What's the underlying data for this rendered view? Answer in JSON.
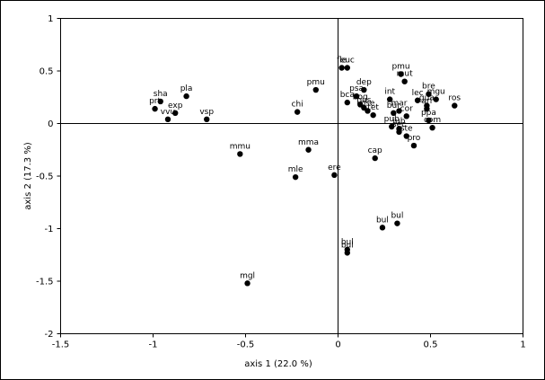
{
  "chart_data": {
    "type": "scatter",
    "title": "",
    "xlabel": "axis 1 (22.0 %)",
    "ylabel": "axis 2 (17.3 %)",
    "xlim": [
      -1.5,
      1
    ],
    "ylim": [
      -2,
      1
    ],
    "xticks": [
      -1.5,
      -1,
      -0.5,
      0,
      0.5,
      1
    ],
    "yticks": [
      -2,
      -1.5,
      -1,
      -0.5,
      0,
      0.5,
      1
    ],
    "xtick_labels": [
      "-1.5",
      "-1",
      "-0.5",
      "0",
      "0.5",
      "1"
    ],
    "ytick_labels": [
      "-2",
      "-1.5",
      "-1",
      "-0.5",
      "0",
      "0.5",
      "1"
    ],
    "grid": false,
    "zero_lines": true,
    "points": [
      {
        "label": "sha",
        "x": -0.96,
        "y": 0.21
      },
      {
        "label": "pla",
        "x": -0.82,
        "y": 0.26
      },
      {
        "label": "exp",
        "x": -0.88,
        "y": 0.1
      },
      {
        "label": "prt",
        "x": -0.99,
        "y": 0.14
      },
      {
        "label": "vvu",
        "x": -0.92,
        "y": 0.04
      },
      {
        "label": "vsp",
        "x": -0.71,
        "y": 0.04
      },
      {
        "label": "chi",
        "x": -0.22,
        "y": 0.11
      },
      {
        "label": "pmu",
        "x": -0.12,
        "y": 0.32
      },
      {
        "label": "mmu",
        "x": -0.53,
        "y": -0.29
      },
      {
        "label": "mma",
        "x": -0.16,
        "y": -0.25
      },
      {
        "label": "mle",
        "x": -0.23,
        "y": -0.51
      },
      {
        "label": "ere",
        "x": -0.02,
        "y": -0.49
      },
      {
        "label": "mgl",
        "x": -0.49,
        "y": -1.52
      },
      {
        "label": "fle",
        "x": 0.02,
        "y": 0.53
      },
      {
        "label": "euc",
        "x": 0.05,
        "y": 0.53
      },
      {
        "label": "dep",
        "x": 0.14,
        "y": 0.32
      },
      {
        "label": "psa",
        "x": 0.1,
        "y": 0.26
      },
      {
        "label": "bca",
        "x": 0.05,
        "y": 0.2
      },
      {
        "label": "bog",
        "x": 0.12,
        "y": 0.18
      },
      {
        "label": "pus",
        "x": 0.14,
        "y": 0.15
      },
      {
        "label": "pse",
        "x": 0.16,
        "y": 0.12
      },
      {
        "label": "tet",
        "x": 0.19,
        "y": 0.08
      },
      {
        "label": "pmu",
        "x": 0.34,
        "y": 0.47
      },
      {
        "label": "mut",
        "x": 0.36,
        "y": 0.4
      },
      {
        "label": "int",
        "x": 0.28,
        "y": 0.23
      },
      {
        "label": "bre",
        "x": 0.49,
        "y": 0.28
      },
      {
        "label": "lec",
        "x": 0.43,
        "y": 0.22
      },
      {
        "label": "mgu",
        "x": 0.53,
        "y": 0.23
      },
      {
        "label": "ros",
        "x": 0.63,
        "y": 0.17
      },
      {
        "label": "gua",
        "x": 0.48,
        "y": 0.17
      },
      {
        "label": "ari",
        "x": 0.48,
        "y": 0.14
      },
      {
        "label": "bur",
        "x": 0.3,
        "y": 0.1
      },
      {
        "label": "mar",
        "x": 0.33,
        "y": 0.12
      },
      {
        "label": "cor",
        "x": 0.37,
        "y": 0.07
      },
      {
        "label": "ppa",
        "x": 0.49,
        "y": 0.03
      },
      {
        "label": "pub",
        "x": 0.29,
        "y": -0.03
      },
      {
        "label": "jub",
        "x": 0.33,
        "y": -0.05
      },
      {
        "label": "sec",
        "x": 0.33,
        "y": -0.08
      },
      {
        "label": "com",
        "x": 0.51,
        "y": -0.04
      },
      {
        "label": "ste",
        "x": 0.37,
        "y": -0.12
      },
      {
        "label": "pro",
        "x": 0.41,
        "y": -0.21
      },
      {
        "label": "cap",
        "x": 0.2,
        "y": -0.33
      },
      {
        "label": "bul",
        "x": 0.32,
        "y": -0.95
      },
      {
        "label": "bul",
        "x": 0.24,
        "y": -0.99
      },
      {
        "label": "bul",
        "x": 0.05,
        "y": -1.2
      },
      {
        "label": "bul",
        "x": 0.05,
        "y": -1.23
      }
    ]
  }
}
